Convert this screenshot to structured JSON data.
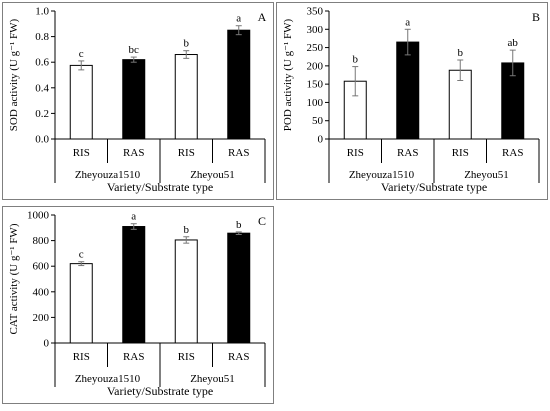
{
  "chart_data": [
    {
      "type": "bar",
      "panel_label": "A",
      "ylabel": "SOD activity (U g⁻¹ FW)",
      "xlabel": "Variety/Substrate type",
      "ylim": [
        0,
        1.0
      ],
      "yticks": [
        "0.0",
        "0.2",
        "0.4",
        "0.6",
        "0.8",
        "1.0"
      ],
      "categories": [
        "RIS",
        "RAS",
        "RIS",
        "RAS"
      ],
      "groups": [
        "Zheyouza1510",
        "Zheyou51"
      ],
      "values": [
        0.575,
        0.62,
        0.66,
        0.85
      ],
      "errors": [
        0.035,
        0.02,
        0.03,
        0.035
      ],
      "letters": [
        "c",
        "bc",
        "b",
        "a"
      ],
      "fills": [
        "#ffffff",
        "#000000",
        "#ffffff",
        "#000000"
      ]
    },
    {
      "type": "bar",
      "panel_label": "B",
      "ylabel": "POD activity (U g⁻¹ FW)",
      "xlabel": "Variety/Substrate type",
      "ylim": [
        0,
        350
      ],
      "yticks": [
        "0",
        "50",
        "100",
        "150",
        "200",
        "250",
        "300",
        "350"
      ],
      "categories": [
        "RIS",
        "RAS",
        "RIS",
        "RAS"
      ],
      "groups": [
        "Zheyouza1510",
        "Zheyou51"
      ],
      "values": [
        158,
        265,
        188,
        208
      ],
      "errors": [
        40,
        35,
        28,
        35
      ],
      "letters": [
        "b",
        "a",
        "b",
        "ab"
      ],
      "fills": [
        "#ffffff",
        "#000000",
        "#ffffff",
        "#000000"
      ]
    },
    {
      "type": "bar",
      "panel_label": "C",
      "ylabel": "CAT activity (U g⁻¹ FW)",
      "xlabel": "Variety/Substrate type",
      "ylim": [
        0,
        1000
      ],
      "yticks": [
        "0",
        "200",
        "400",
        "600",
        "800",
        "1000"
      ],
      "categories": [
        "RIS",
        "RAS",
        "RIS",
        "RAS"
      ],
      "groups": [
        "Zheyouza1510",
        "Zheyou51"
      ],
      "values": [
        620,
        910,
        805,
        858
      ],
      "errors": [
        15,
        22,
        25,
        10
      ],
      "letters": [
        "c",
        "a",
        "b",
        "b"
      ],
      "fills": [
        "#ffffff",
        "#000000",
        "#ffffff",
        "#000000"
      ]
    }
  ]
}
